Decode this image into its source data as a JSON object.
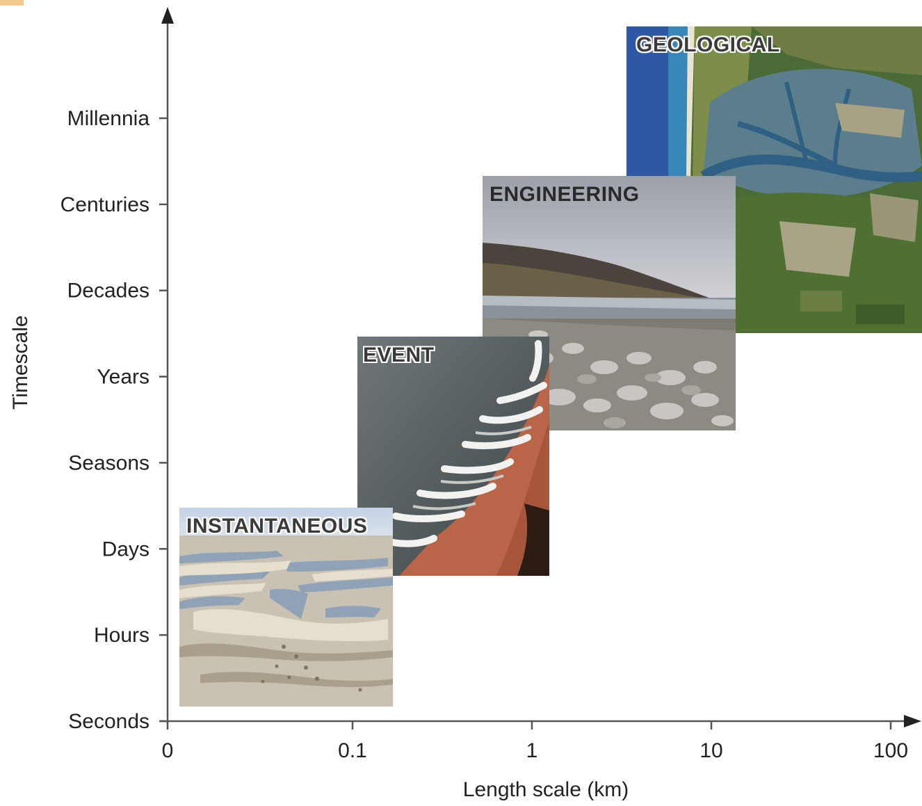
{
  "chart_data": {
    "type": "diagram",
    "xlabel": "Length scale (km)",
    "ylabel": "Timescale",
    "x_ticks": [
      "0",
      "0.1",
      "1",
      "10",
      "100"
    ],
    "y_ticks": [
      "Seconds",
      "Hours",
      "Days",
      "Seasons",
      "Years",
      "Decades",
      "Centuries",
      "Millennia"
    ],
    "panels": [
      {
        "label": "GEOLOGICAL",
        "x_extent": [
          "3.5",
          "beyond 100"
        ],
        "y_extent": [
          "Decades",
          "above Millennia"
        ],
        "image": "estuary-satellite-image"
      },
      {
        "label": "ENGINEERING",
        "x_extent": [
          "0.5",
          "15"
        ],
        "y_extent": [
          "Years",
          "Centuries"
        ],
        "image": "cobble-beach-headland-photo"
      },
      {
        "label": "EVENT",
        "x_extent": [
          "0.1",
          "1.2"
        ],
        "y_extent": [
          "Days",
          "Years"
        ],
        "image": "breaking-waves-on-beach-photo"
      },
      {
        "label": "INSTANTANEOUS",
        "x_extent": [
          "0.01",
          "0.17"
        ],
        "y_extent": [
          "Seconds",
          "Days"
        ],
        "image": "sand-ripples-photo"
      }
    ]
  },
  "colors": {
    "axis": "#555555",
    "text": "#222222",
    "label_dark": "#2a2a2a"
  }
}
